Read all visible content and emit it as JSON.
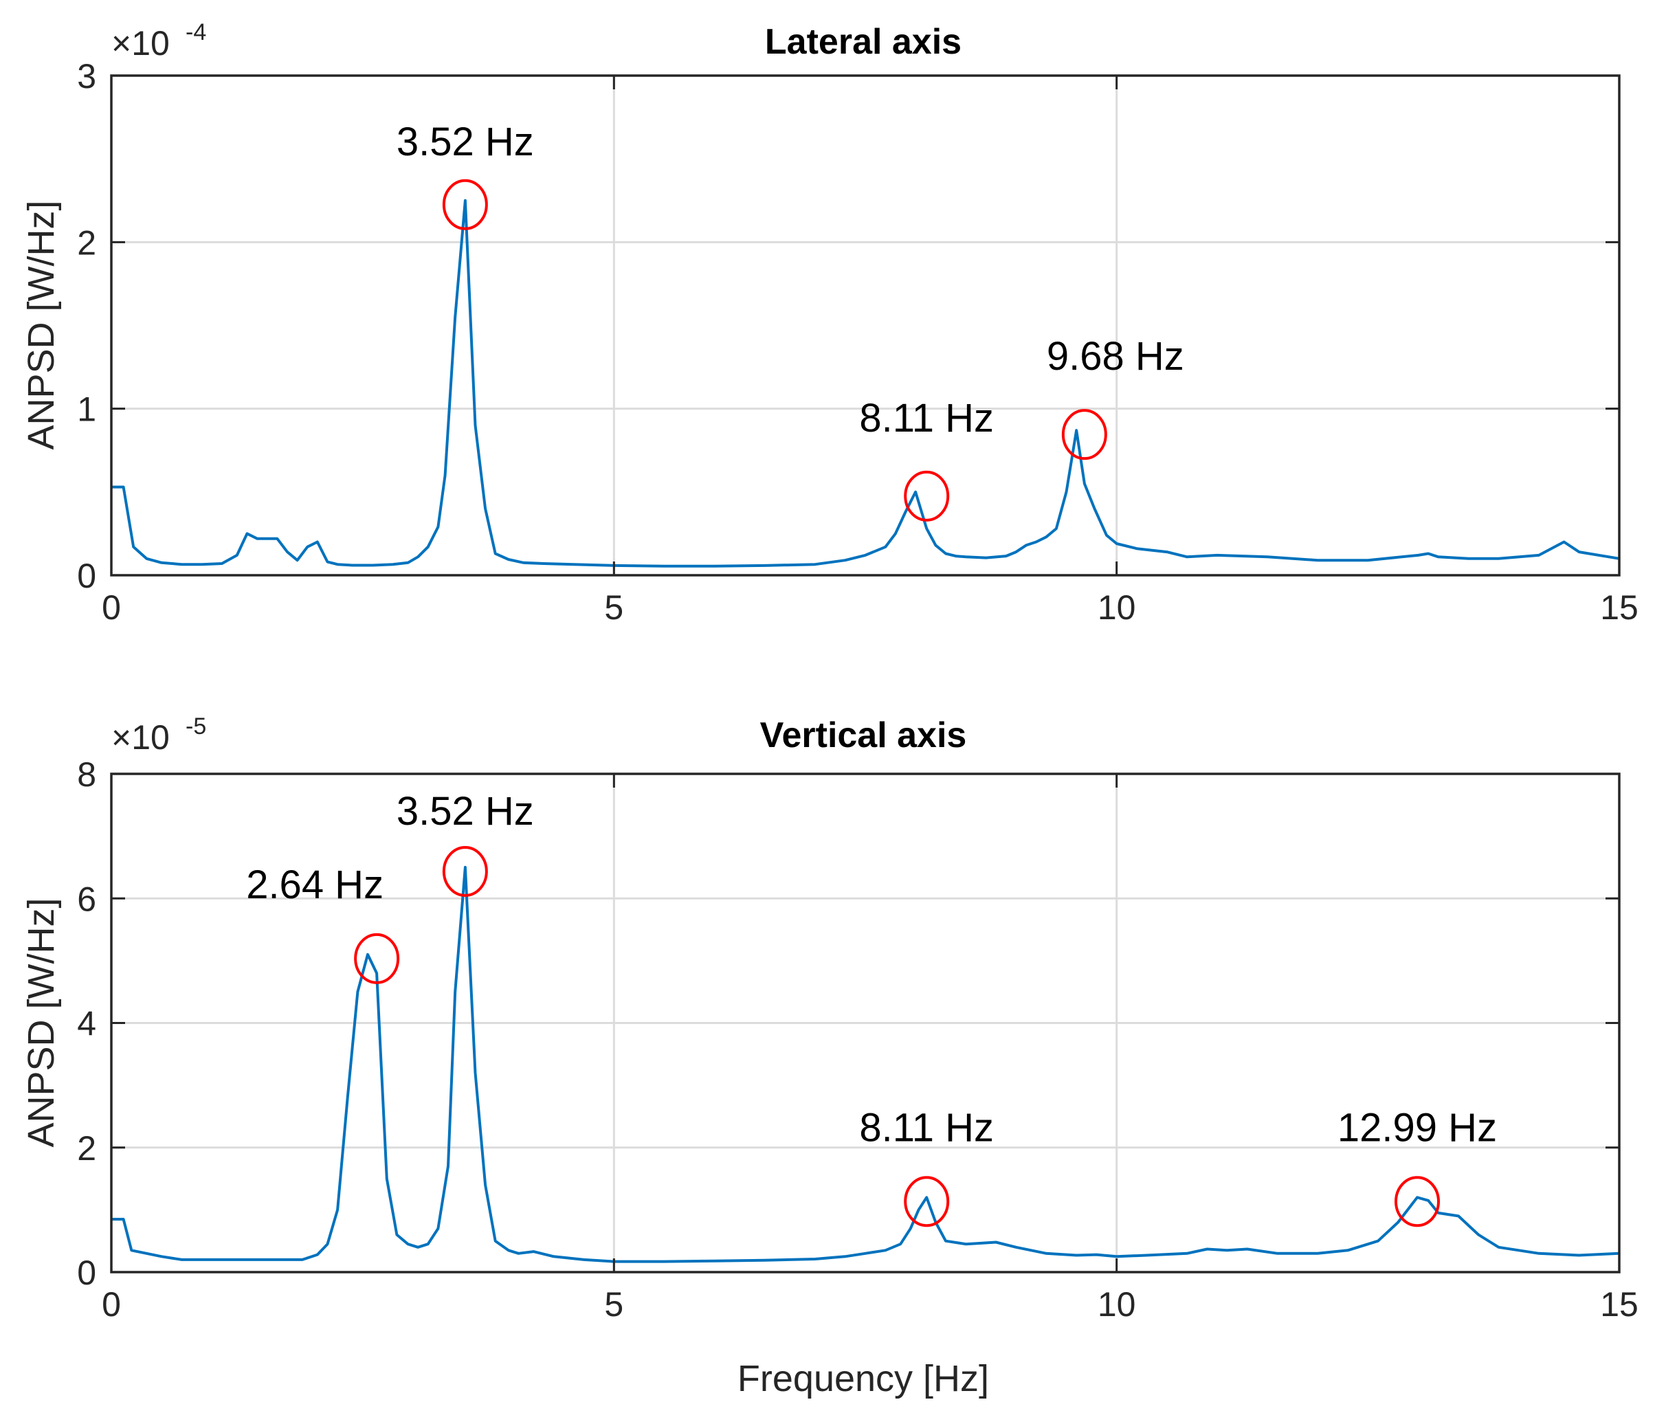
{
  "chart_data": [
    {
      "type": "line",
      "title": "Lateral axis",
      "xlabel": "",
      "ylabel": "ANPSD [W/Hz]",
      "exponent_label": "×10",
      "exponent_value": "-4",
      "xlim": [
        0,
        15
      ],
      "ylim": [
        0,
        3
      ],
      "xticks": [
        0,
        5,
        10,
        15
      ],
      "xtick_labels": [
        "0",
        "5",
        "10",
        "15"
      ],
      "yticks": [
        0,
        1,
        2,
        3
      ],
      "ytick_labels": [
        "0",
        "1",
        "2",
        "3"
      ],
      "grid": true,
      "series": [
        {
          "name": "ANPSD",
          "color": "#0072BD",
          "x": [
            0,
            0.12,
            0.22,
            0.35,
            0.5,
            0.7,
            0.9,
            1.1,
            1.25,
            1.35,
            1.45,
            1.55,
            1.65,
            1.75,
            1.85,
            1.95,
            2.05,
            2.15,
            2.25,
            2.4,
            2.6,
            2.8,
            2.95,
            3.05,
            3.15,
            3.25,
            3.32,
            3.42,
            3.52,
            3.62,
            3.72,
            3.82,
            3.95,
            4.1,
            4.3,
            4.6,
            5.0,
            5.5,
            6.0,
            6.5,
            7.0,
            7.3,
            7.5,
            7.7,
            7.8,
            7.9,
            8.0,
            8.11,
            8.2,
            8.3,
            8.4,
            8.5,
            8.7,
            8.9,
            9.0,
            9.1,
            9.2,
            9.3,
            9.4,
            9.5,
            9.6,
            9.68,
            9.78,
            9.9,
            10.0,
            10.2,
            10.5,
            10.7,
            11.0,
            11.5,
            12.0,
            12.5,
            13.0,
            13.1,
            13.2,
            13.5,
            13.8,
            14.2,
            14.45,
            14.6,
            15.0
          ],
          "y": [
            0.53,
            0.53,
            0.17,
            0.1,
            0.075,
            0.065,
            0.065,
            0.07,
            0.12,
            0.25,
            0.22,
            0.22,
            0.22,
            0.14,
            0.09,
            0.17,
            0.2,
            0.08,
            0.065,
            0.06,
            0.06,
            0.065,
            0.075,
            0.11,
            0.17,
            0.29,
            0.6,
            1.55,
            2.25,
            0.9,
            0.4,
            0.13,
            0.095,
            0.075,
            0.07,
            0.065,
            0.058,
            0.055,
            0.055,
            0.058,
            0.065,
            0.09,
            0.12,
            0.17,
            0.25,
            0.38,
            0.5,
            0.28,
            0.18,
            0.13,
            0.115,
            0.11,
            0.105,
            0.115,
            0.14,
            0.18,
            0.2,
            0.23,
            0.28,
            0.5,
            0.87,
            0.55,
            0.4,
            0.24,
            0.19,
            0.16,
            0.14,
            0.11,
            0.12,
            0.11,
            0.09,
            0.09,
            0.12,
            0.13,
            0.11,
            0.1,
            0.1,
            0.12,
            0.2,
            0.14,
            0.1
          ]
        }
      ],
      "annotations": [
        {
          "text": "3.52 Hz",
          "x": 3.52,
          "y": 2.25
        },
        {
          "text": "8.11 Hz",
          "x": 8.11,
          "y": 0.5
        },
        {
          "text": "9.68 Hz",
          "x": 9.68,
          "y": 0.87
        }
      ]
    },
    {
      "type": "line",
      "title": "Vertical axis",
      "xlabel": "Frequency [Hz]",
      "ylabel": "ANPSD [W/Hz]",
      "exponent_label": "×10",
      "exponent_value": "-5",
      "xlim": [
        0,
        15
      ],
      "ylim": [
        0,
        8
      ],
      "xticks": [
        0,
        5,
        10,
        15
      ],
      "xtick_labels": [
        "0",
        "5",
        "10",
        "15"
      ],
      "yticks": [
        0,
        2,
        4,
        6,
        8
      ],
      "ytick_labels": [
        "0",
        "2",
        "4",
        "6",
        "8"
      ],
      "grid": true,
      "series": [
        {
          "name": "ANPSD",
          "color": "#0072BD",
          "x": [
            0,
            0.12,
            0.2,
            0.35,
            0.5,
            0.7,
            0.9,
            1.1,
            1.3,
            1.5,
            1.7,
            1.9,
            2.05,
            2.15,
            2.25,
            2.35,
            2.45,
            2.55,
            2.64,
            2.74,
            2.84,
            2.95,
            3.05,
            3.15,
            3.25,
            3.35,
            3.42,
            3.52,
            3.62,
            3.72,
            3.82,
            3.95,
            4.05,
            4.2,
            4.4,
            4.7,
            5.0,
            5.5,
            6.0,
            6.5,
            7.0,
            7.3,
            7.5,
            7.7,
            7.85,
            7.95,
            8.03,
            8.11,
            8.2,
            8.3,
            8.5,
            8.8,
            9.0,
            9.3,
            9.6,
            9.8,
            10.0,
            10.3,
            10.7,
            10.9,
            11.1,
            11.3,
            11.6,
            12.0,
            12.3,
            12.6,
            12.8,
            12.99,
            13.1,
            13.2,
            13.4,
            13.6,
            13.8,
            14.2,
            14.6,
            15.0
          ],
          "y": [
            0.85,
            0.85,
            0.35,
            0.3,
            0.25,
            0.2,
            0.2,
            0.2,
            0.2,
            0.2,
            0.2,
            0.2,
            0.28,
            0.45,
            1.0,
            2.8,
            4.5,
            5.1,
            4.8,
            1.5,
            0.6,
            0.45,
            0.4,
            0.45,
            0.7,
            1.7,
            4.5,
            6.5,
            3.2,
            1.4,
            0.5,
            0.35,
            0.3,
            0.33,
            0.25,
            0.2,
            0.17,
            0.17,
            0.18,
            0.19,
            0.21,
            0.25,
            0.3,
            0.35,
            0.45,
            0.7,
            1.0,
            1.2,
            0.8,
            0.5,
            0.45,
            0.48,
            0.4,
            0.3,
            0.27,
            0.28,
            0.25,
            0.27,
            0.3,
            0.37,
            0.35,
            0.37,
            0.3,
            0.3,
            0.35,
            0.5,
            0.8,
            1.2,
            1.15,
            0.95,
            0.9,
            0.6,
            0.4,
            0.3,
            0.27,
            0.3
          ]
        }
      ],
      "annotations": [
        {
          "text": "2.64 Hz",
          "x": 2.64,
          "y": 5.1
        },
        {
          "text": "3.52 Hz",
          "x": 3.52,
          "y": 6.5
        },
        {
          "text": "8.11 Hz",
          "x": 8.11,
          "y": 1.2
        },
        {
          "text": "12.99 Hz",
          "x": 12.99,
          "y": 1.2
        }
      ]
    }
  ]
}
